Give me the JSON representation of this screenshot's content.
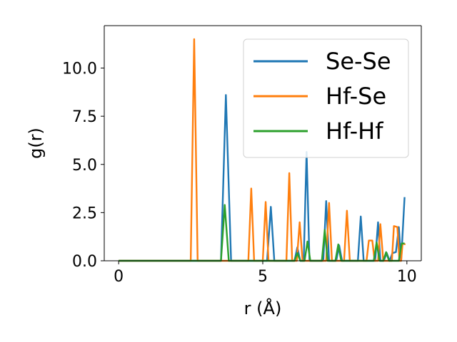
{
  "chart_data": {
    "type": "line",
    "xlabel": "r (Å)",
    "ylabel": "g(r)",
    "xlim": [
      -0.5,
      10.5
    ],
    "ylim": [
      0,
      12.2
    ],
    "xticks": [
      0,
      5,
      10
    ],
    "yticks": [
      0.0,
      2.5,
      5.0,
      7.5,
      10.0
    ],
    "xtick_labels": [
      "0",
      "5",
      "10"
    ],
    "ytick_labels": [
      "0.0",
      "2.5",
      "5.0",
      "7.5",
      "10.0"
    ],
    "grid": false,
    "legend_position": "top-right",
    "series": [
      {
        "name": "Se-Se",
        "color": "#1f77b4",
        "points": [
          [
            0,
            0
          ],
          [
            3.55,
            0
          ],
          [
            3.72,
            8.6
          ],
          [
            3.9,
            0
          ],
          [
            5.15,
            0
          ],
          [
            5.28,
            2.8
          ],
          [
            5.4,
            0
          ],
          [
            6.1,
            0
          ],
          [
            6.2,
            0.7
          ],
          [
            6.3,
            0
          ],
          [
            6.42,
            0
          ],
          [
            6.52,
            5.65
          ],
          [
            6.62,
            0
          ],
          [
            7.1,
            0
          ],
          [
            7.2,
            3.1
          ],
          [
            7.3,
            0
          ],
          [
            7.55,
            0
          ],
          [
            7.65,
            0.8
          ],
          [
            7.75,
            0
          ],
          [
            8.3,
            0
          ],
          [
            8.4,
            2.3
          ],
          [
            8.5,
            0
          ],
          [
            8.9,
            0
          ],
          [
            9.0,
            2.0
          ],
          [
            9.08,
            0
          ],
          [
            9.2,
            0
          ],
          [
            9.3,
            0.4
          ],
          [
            9.4,
            0
          ],
          [
            9.5,
            0.4
          ],
          [
            9.62,
            0.45
          ],
          [
            9.72,
            1.75
          ],
          [
            9.8,
            0
          ],
          [
            9.92,
            3.3
          ]
        ]
      },
      {
        "name": "Hf-Se",
        "color": "#ff7f0e",
        "points": [
          [
            0,
            0
          ],
          [
            2.5,
            0
          ],
          [
            2.62,
            11.5
          ],
          [
            2.74,
            0
          ],
          [
            4.5,
            0
          ],
          [
            4.6,
            3.75
          ],
          [
            4.7,
            0
          ],
          [
            5.0,
            0
          ],
          [
            5.1,
            3.05
          ],
          [
            5.2,
            0
          ],
          [
            5.82,
            0
          ],
          [
            5.92,
            4.55
          ],
          [
            6.02,
            0
          ],
          [
            6.18,
            0
          ],
          [
            6.28,
            2.0
          ],
          [
            6.38,
            0
          ],
          [
            7.2,
            0
          ],
          [
            7.3,
            3.0
          ],
          [
            7.4,
            0
          ],
          [
            7.82,
            0
          ],
          [
            7.92,
            2.6
          ],
          [
            8.02,
            0
          ],
          [
            8.6,
            0
          ],
          [
            8.68,
            1.05
          ],
          [
            8.8,
            1.05
          ],
          [
            8.88,
            0
          ],
          [
            9.0,
            0
          ],
          [
            9.08,
            1.9
          ],
          [
            9.18,
            0
          ],
          [
            9.48,
            0
          ],
          [
            9.55,
            1.8
          ],
          [
            9.67,
            1.75
          ],
          [
            9.74,
            0
          ],
          [
            9.8,
            0
          ],
          [
            9.85,
            0.9
          ],
          [
            9.95,
            0.85
          ]
        ]
      },
      {
        "name": "Hf-Hf",
        "color": "#2ca02c",
        "points": [
          [
            0,
            0
          ],
          [
            3.55,
            0
          ],
          [
            3.68,
            2.9
          ],
          [
            3.82,
            0
          ],
          [
            6.1,
            0
          ],
          [
            6.2,
            0.4
          ],
          [
            6.3,
            0
          ],
          [
            6.45,
            0
          ],
          [
            6.55,
            1.0
          ],
          [
            6.65,
            0
          ],
          [
            7.05,
            0
          ],
          [
            7.15,
            1.6
          ],
          [
            7.25,
            0
          ],
          [
            7.52,
            0
          ],
          [
            7.62,
            0.85
          ],
          [
            7.72,
            0
          ],
          [
            8.85,
            0
          ],
          [
            8.95,
            0.95
          ],
          [
            9.05,
            0
          ],
          [
            9.18,
            0
          ],
          [
            9.28,
            0.45
          ],
          [
            9.38,
            0
          ],
          [
            9.72,
            0
          ],
          [
            9.82,
            0.9
          ],
          [
            9.92,
            0.9
          ]
        ]
      }
    ]
  }
}
